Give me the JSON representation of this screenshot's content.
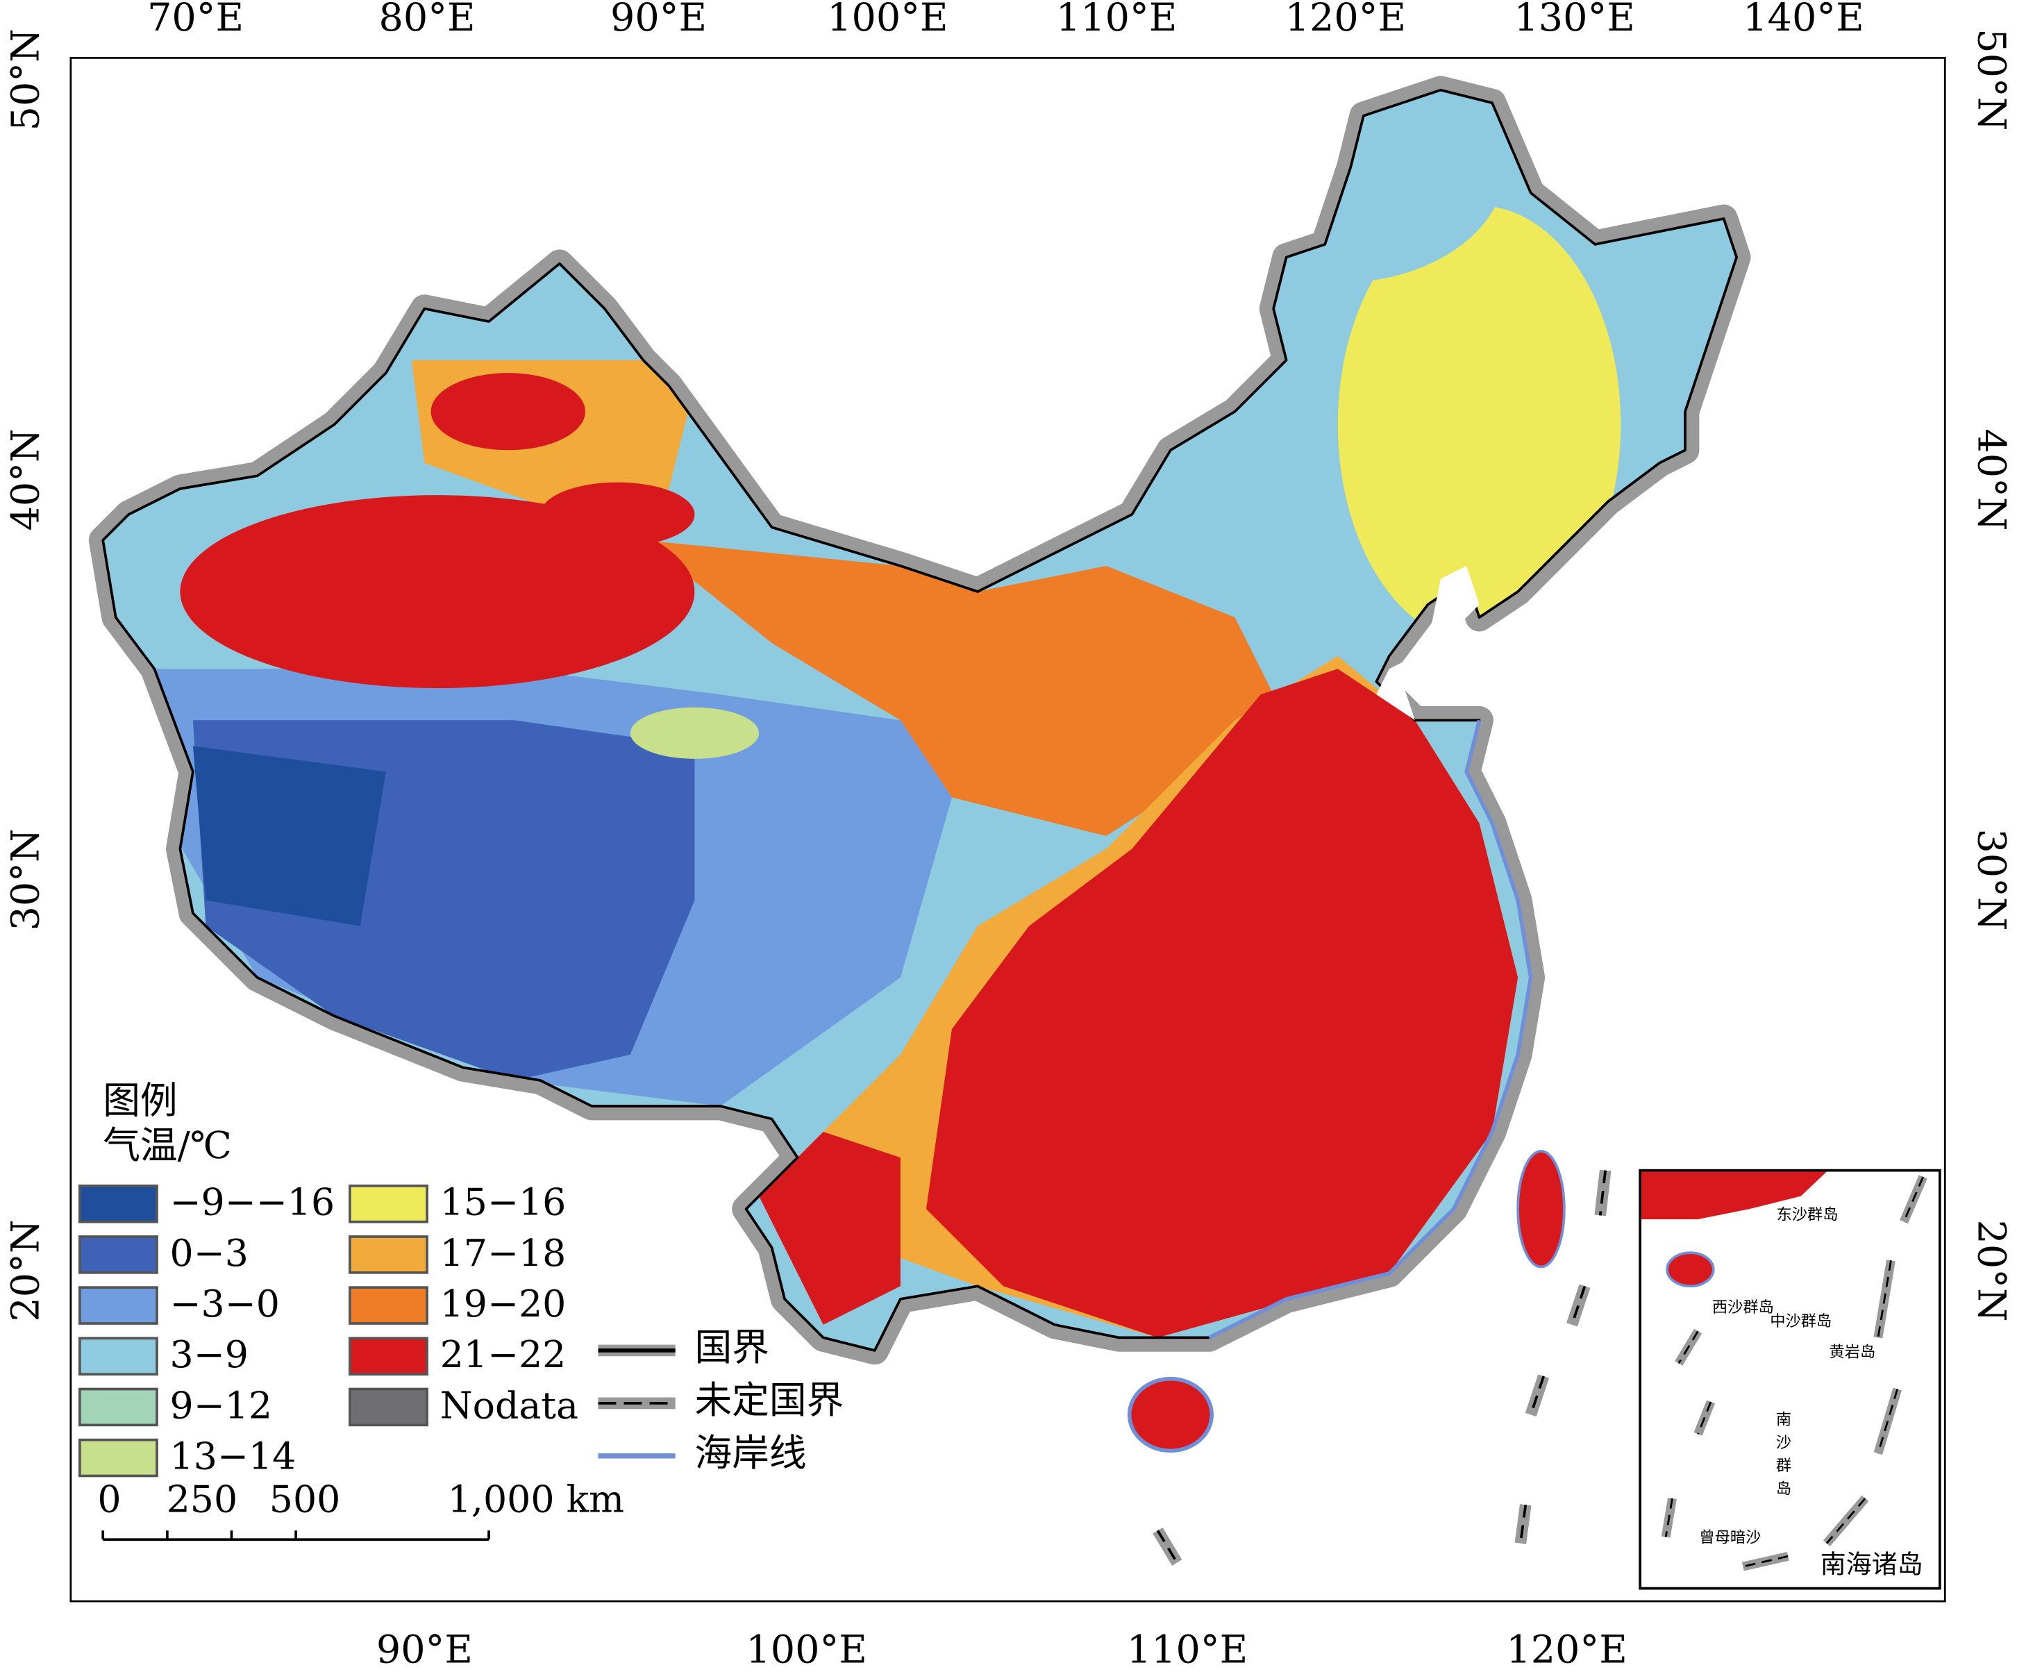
{
  "axes": {
    "top_labels": [
      "70°E",
      "80°E",
      "90°E",
      "100°E",
      "110°E",
      "120°E",
      "130°E",
      "140°E"
    ],
    "bottom_labels": [
      "90°E",
      "100°E",
      "110°E",
      "120°E"
    ],
    "left_labels": [
      "50°N",
      "40°N",
      "30°N",
      "20°N"
    ],
    "right_labels": [
      "50°N",
      "40°N",
      "30°N",
      "20°N"
    ]
  },
  "legend": {
    "title": "图例",
    "subtitle": "气温/℃",
    "items": [
      {
        "label": "−9−−16",
        "color": "#1f4e9c"
      },
      {
        "label": "0−3",
        "color": "#3d62b8"
      },
      {
        "label": "−3−0",
        "color": "#6f9de0"
      },
      {
        "label": "3−9",
        "color": "#8ecae0"
      },
      {
        "label": "9−12",
        "color": "#a2d5b8"
      },
      {
        "label": "13−14",
        "color": "#c8e08c"
      },
      {
        "label": "15−16",
        "color": "#eeea5a"
      },
      {
        "label": "17−18",
        "color": "#f2ab3a"
      },
      {
        "label": "19−20",
        "color": "#ef7c26"
      },
      {
        "label": "21−22",
        "color": "#d7181c"
      },
      {
        "label": "Nodata",
        "color": "#6e6e73"
      }
    ]
  },
  "line_legend": [
    {
      "label": "国界"
    },
    {
      "label": "未定国界"
    },
    {
      "label": "海岸线"
    }
  ],
  "scale_bar": {
    "labels": [
      "0",
      "250",
      "500",
      "1,000 km"
    ]
  },
  "inset": {
    "labels": [
      "东沙群岛",
      "西沙群岛",
      "中沙群岛",
      "黄岩岛",
      "南沙群岛",
      "曾母暗沙"
    ],
    "title": "南海诸岛"
  }
}
